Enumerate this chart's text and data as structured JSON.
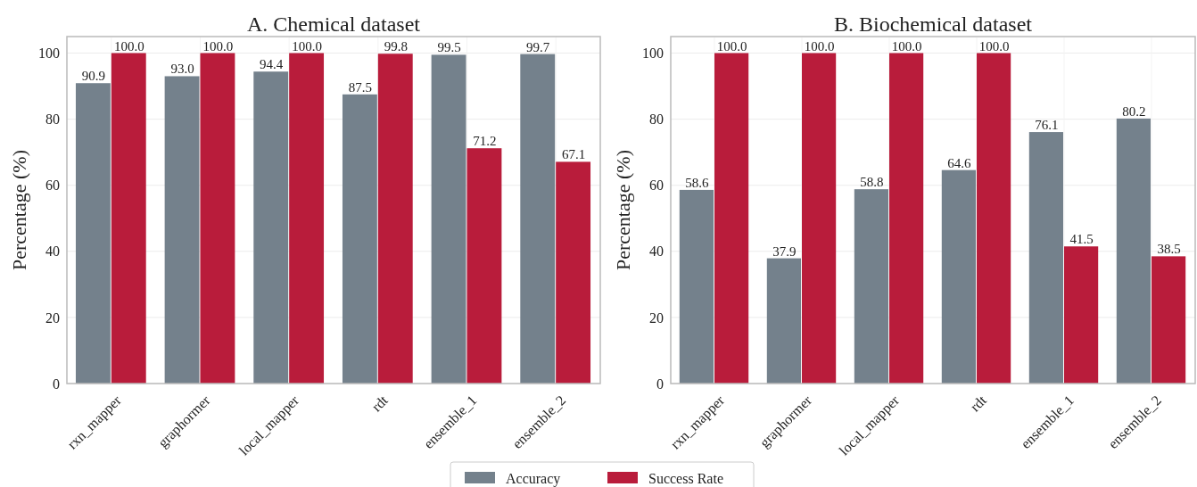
{
  "chart_data": [
    {
      "type": "bar",
      "title": "A. Chemical dataset",
      "ylabel": "Percentage (%)",
      "categories": [
        "rxn_mapper",
        "graphormer",
        "local_mapper",
        "rdt",
        "ensemble_1",
        "ensemble_2"
      ],
      "series": [
        {
          "name": "Accuracy",
          "color": "#74818c",
          "values": [
            90.9,
            93.0,
            94.4,
            87.5,
            99.5,
            99.7
          ],
          "value_labels": [
            "90.9",
            "93.0",
            "94.4",
            "87.5",
            "99.5",
            "99.7"
          ]
        },
        {
          "name": "Success Rate",
          "color": "#b91c3b",
          "values": [
            100.0,
            100.0,
            100.0,
            99.8,
            71.2,
            67.1
          ],
          "value_labels": [
            "100.0",
            "100.0",
            "100.0",
            "99.8",
            "71.2",
            "67.1"
          ]
        }
      ],
      "ylim": [
        0,
        105
      ],
      "yticks": [
        0,
        20,
        40,
        60,
        80,
        100
      ],
      "grid": true,
      "legend": "bottom"
    },
    {
      "type": "bar",
      "title": "B. Biochemical dataset",
      "ylabel": "Percentage (%)",
      "categories": [
        "rxn_mapper",
        "graphormer",
        "local_mapper",
        "rdt",
        "ensemble_1",
        "ensemble_2"
      ],
      "series": [
        {
          "color": "#74818c",
          "values": [
            58.6,
            37.9,
            58.8,
            64.6,
            76.1,
            80.2
          ],
          "value_labels": [
            "58.6",
            "37.9",
            "58.8",
            "64.6",
            "76.1",
            "80.2"
          ]
        },
        {
          "color": "#b91c3b",
          "values": [
            100.0,
            100.0,
            100.0,
            100.0,
            41.5,
            38.5
          ],
          "value_labels": [
            "100.0",
            "100.0",
            "100.0",
            "100.0",
            "41.5",
            "38.5"
          ]
        }
      ],
      "ylim": [
        0,
        105
      ],
      "yticks": [
        0,
        20,
        40,
        60,
        80,
        100
      ],
      "grid": true
    }
  ]
}
